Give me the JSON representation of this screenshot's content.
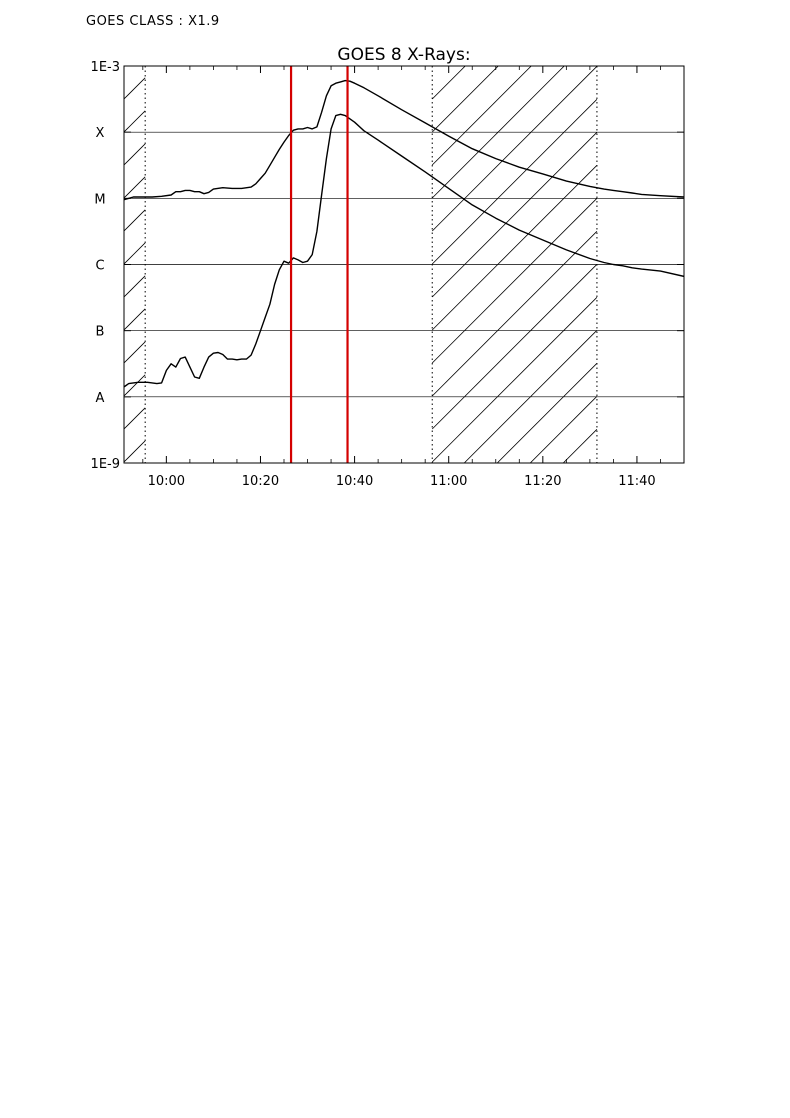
{
  "header": {
    "goes_class": "GOES CLASS : X1.9"
  },
  "chart_data": {
    "type": "line",
    "title": "GOES 8 X-Rays:",
    "xlabel": "",
    "ylabel": "",
    "x_unit": "minutes of day",
    "xlim": [
      591,
      710
    ],
    "ylim_log10": [
      -9,
      -3
    ],
    "log_scale_y": true,
    "grid": "horizontal at class boundaries",
    "x_ticks": [
      {
        "value": 600,
        "label": "10:00"
      },
      {
        "value": 620,
        "label": "10:20"
      },
      {
        "value": 640,
        "label": "10:40"
      },
      {
        "value": 660,
        "label": "11:00"
      },
      {
        "value": 680,
        "label": "11:20"
      },
      {
        "value": 700,
        "label": "11:40"
      }
    ],
    "y_ticks": [
      {
        "log": -3,
        "label": "1E-3"
      },
      {
        "log": -4,
        "label": "X"
      },
      {
        "log": -5,
        "label": "M"
      },
      {
        "log": -6,
        "label": "C"
      },
      {
        "log": -7,
        "label": "B"
      },
      {
        "log": -8,
        "label": "A"
      },
      {
        "log": -9,
        "label": "1E-9"
      }
    ],
    "hatched_regions": [
      {
        "from": 591,
        "to": 595.5
      },
      {
        "from": 656.5,
        "to": 691.5
      }
    ],
    "vertical_markers": [
      {
        "value": 626.5,
        "color": "#d40000"
      },
      {
        "value": 638.5,
        "color": "#d40000"
      }
    ],
    "series": [
      {
        "color": "#000000",
        "x": [
          591,
          593,
          595,
          597,
          599,
          601,
          602,
          603,
          604,
          605,
          606,
          607,
          608,
          609,
          610,
          612,
          614,
          616,
          618,
          619,
          620,
          621,
          622,
          623,
          624,
          625,
          626,
          627,
          628,
          629,
          630,
          631,
          632,
          633,
          634,
          635,
          636,
          637,
          638,
          639,
          640,
          642,
          645,
          650,
          655,
          660,
          665,
          670,
          675,
          680,
          685,
          690,
          693,
          695,
          697,
          699,
          701,
          705,
          710
        ],
        "log10": [
          -5.02,
          -4.98,
          -4.98,
          -4.98,
          -4.97,
          -4.95,
          -4.9,
          -4.9,
          -4.88,
          -4.88,
          -4.9,
          -4.9,
          -4.93,
          -4.91,
          -4.86,
          -4.84,
          -4.85,
          -4.85,
          -4.83,
          -4.78,
          -4.7,
          -4.62,
          -4.5,
          -4.38,
          -4.26,
          -4.15,
          -4.05,
          -3.97,
          -3.95,
          -3.95,
          -3.93,
          -3.95,
          -3.92,
          -3.7,
          -3.45,
          -3.3,
          -3.26,
          -3.24,
          -3.22,
          -3.23,
          -3.26,
          -3.33,
          -3.45,
          -3.66,
          -3.86,
          -4.06,
          -4.25,
          -4.4,
          -4.53,
          -4.63,
          -4.74,
          -4.82,
          -4.86,
          -4.88,
          -4.9,
          -4.92,
          -4.94,
          -4.96,
          -4.98
        ]
      },
      {
        "color": "#000000",
        "x": [
          591,
          592,
          594,
          596,
          597,
          598,
          599,
          600,
          601,
          602,
          603,
          604,
          605,
          606,
          607,
          608,
          609,
          610,
          611,
          612,
          613,
          614,
          615,
          616,
          617,
          618,
          619,
          620,
          621,
          622,
          623,
          624,
          625,
          626,
          627,
          628,
          629,
          630,
          631,
          632,
          633,
          634,
          635,
          636,
          637,
          638,
          640,
          642,
          645,
          650,
          655,
          660,
          665,
          670,
          675,
          680,
          685,
          690,
          693,
          695,
          697,
          699,
          701,
          705,
          710
        ],
        "log10": [
          -7.85,
          -7.8,
          -7.78,
          -7.78,
          -7.79,
          -7.8,
          -7.79,
          -7.6,
          -7.5,
          -7.55,
          -7.42,
          -7.4,
          -7.55,
          -7.7,
          -7.72,
          -7.55,
          -7.4,
          -7.34,
          -7.33,
          -7.36,
          -7.43,
          -7.43,
          -7.44,
          -7.43,
          -7.43,
          -7.37,
          -7.2,
          -7.0,
          -6.8,
          -6.6,
          -6.3,
          -6.08,
          -5.95,
          -5.98,
          -5.9,
          -5.93,
          -5.97,
          -5.95,
          -5.85,
          -5.5,
          -4.95,
          -4.4,
          -3.95,
          -3.75,
          -3.73,
          -3.75,
          -3.85,
          -3.98,
          -4.12,
          -4.36,
          -4.6,
          -4.85,
          -5.1,
          -5.3,
          -5.48,
          -5.63,
          -5.78,
          -5.91,
          -5.97,
          -6.0,
          -6.02,
          -6.05,
          -6.07,
          -6.1,
          -6.18
        ]
      }
    ]
  }
}
